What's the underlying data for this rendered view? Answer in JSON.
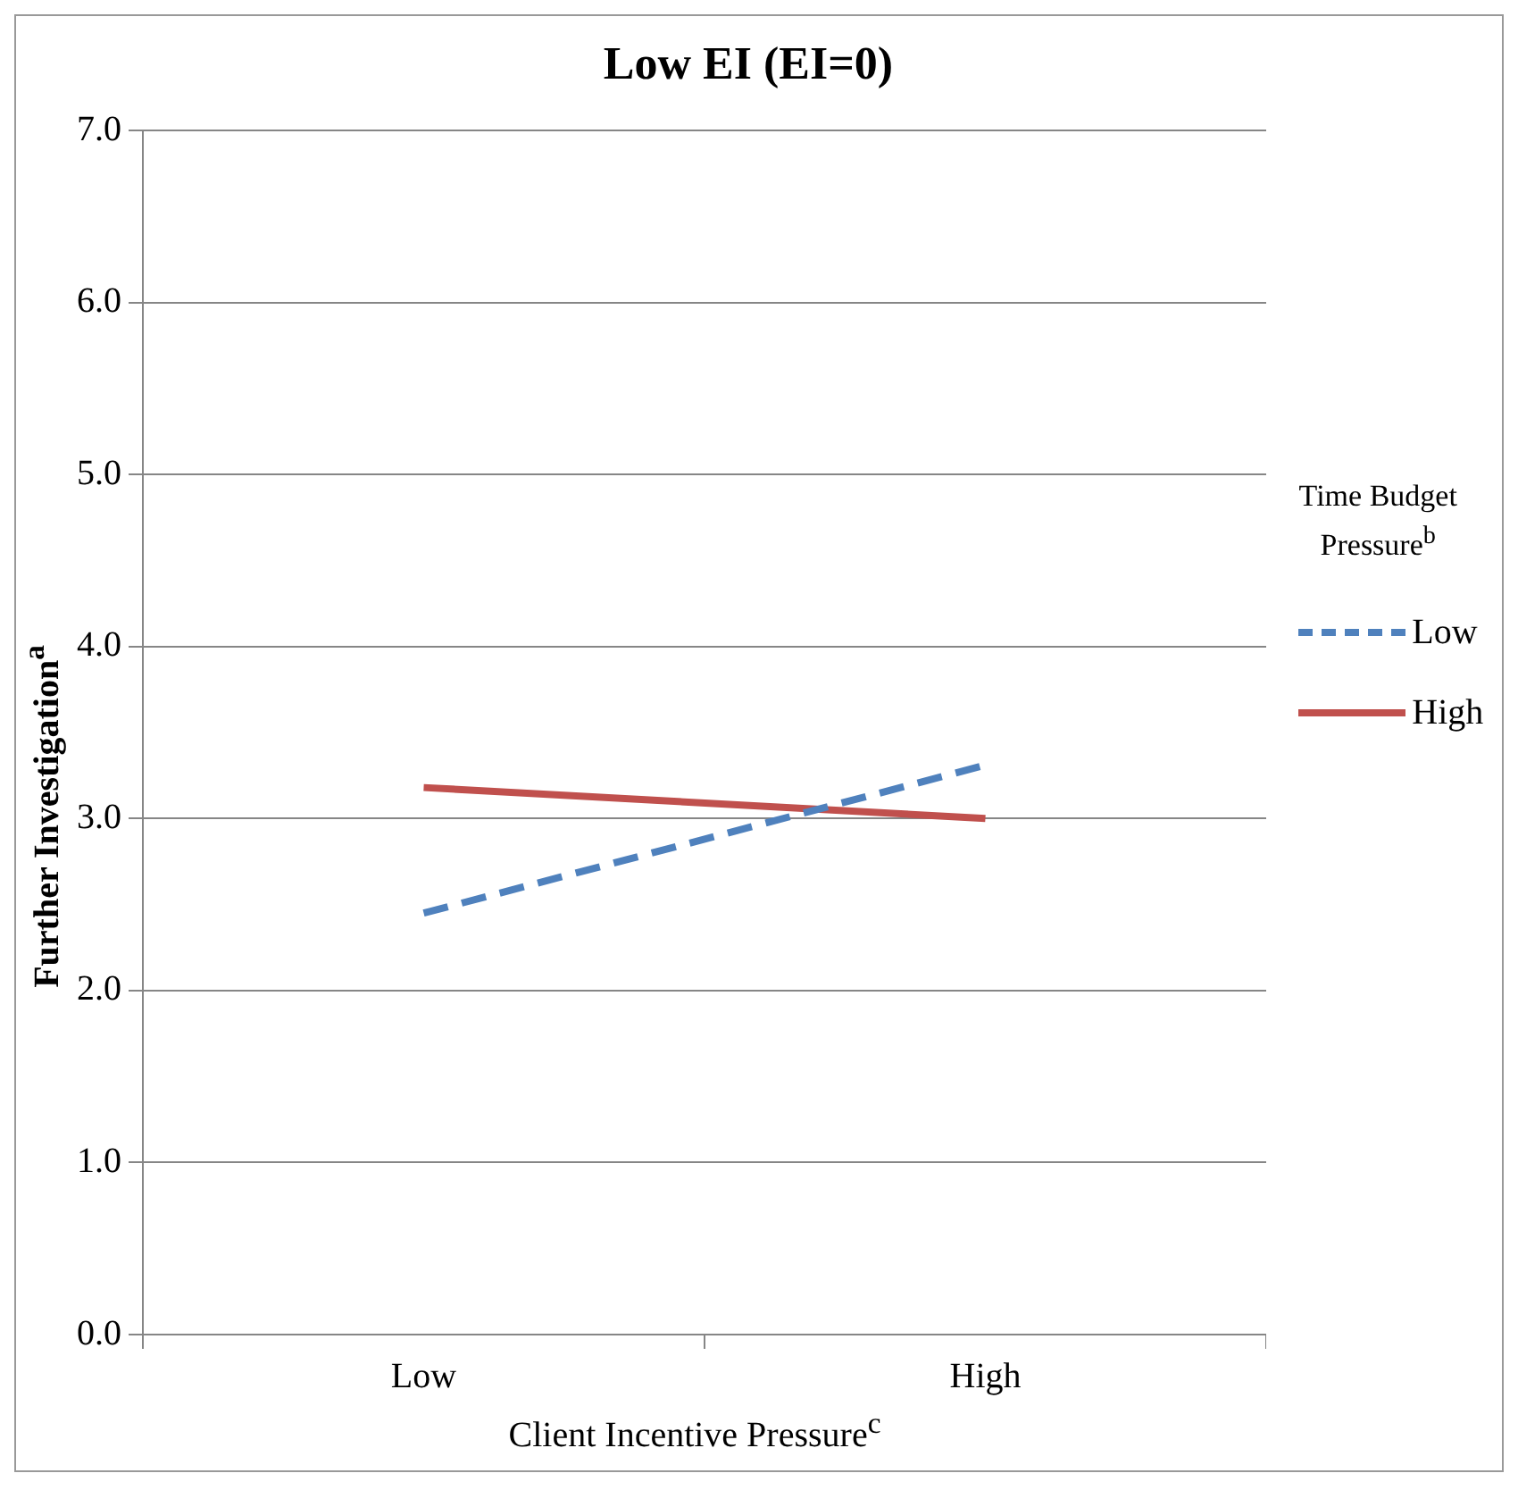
{
  "chart_data": {
    "type": "line",
    "title": "Low EI (EI=0)",
    "xlabel": "Client Incentive Pressure$^{c}$",
    "ylabel": "Further Investigation$^{a}$",
    "legend_title": "Time Budget Pressure$^{b}$",
    "categories": [
      "Low",
      "High"
    ],
    "series": [
      {
        "name": "Low",
        "color": "#4f81bd",
        "values": [
          2.45,
          3.31
        ],
        "line_style": "dashed"
      },
      {
        "name": "High",
        "color": "#c0504d",
        "values": [
          3.18,
          3.0
        ],
        "line_style": "solid"
      }
    ],
    "ylim": [
      0,
      7
    ],
    "yticks": [
      {
        "value": 0,
        "label": "0.0"
      },
      {
        "value": 1,
        "label": "1.0"
      },
      {
        "value": 2,
        "label": "2.0"
      },
      {
        "value": 3,
        "label": "3.0"
      },
      {
        "value": 4,
        "label": "4.0"
      },
      {
        "value": 5,
        "label": "5.0"
      },
      {
        "value": 6,
        "label": "6.0"
      },
      {
        "value": 7,
        "label": "7.0"
      }
    ],
    "grid": "y",
    "legend": "right",
    "marker": "none"
  }
}
